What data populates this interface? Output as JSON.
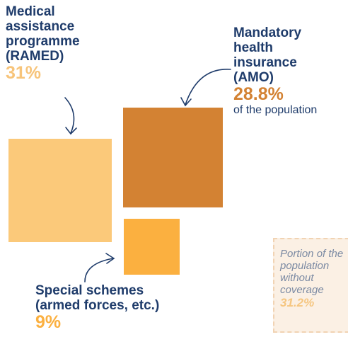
{
  "chart_data": {
    "type": "square",
    "categories": [
      "Medical assistance programme (RAMED)",
      "Mandatory health insurance (AMO)",
      "Special schemes (armed forces, etc.)"
    ],
    "values": [
      31,
      28.8,
      9
    ],
    "value_labels": [
      "31%",
      "28.8%",
      "9%"
    ],
    "colors": [
      "#fbc97a",
      "#d38233",
      "#fbb040"
    ],
    "unit_note": "of the population",
    "note": {
      "text": "Portion of the population without coverage",
      "value": 31.2,
      "value_label": "31.2%"
    }
  }
}
